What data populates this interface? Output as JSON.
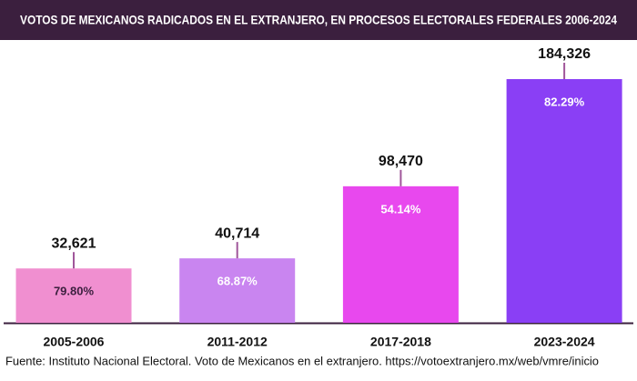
{
  "chart_data": {
    "type": "bar",
    "title": "VOTOS DE MEXICANOS RADICADOS EN EL EXTRANJERO, EN PROCESOS ELECTORALES FEDERALES 2006-2024",
    "categories": [
      "2005-2006",
      "2011-2012",
      "2017-2018",
      "2023-2024"
    ],
    "values": [
      32621,
      40714,
      98470,
      184326
    ],
    "value_labels": [
      "32,621",
      "40,714",
      "98,470",
      "184,326"
    ],
    "colors": [
      "#f08fd0",
      "#c985f0",
      "#e848ee",
      "#8a3ff5"
    ],
    "shares": {
      "values": [
        79.8,
        68.87,
        54.14,
        82.29
      ],
      "value_labels": [
        "79.80%",
        "68.87%",
        "54.14%",
        "82.29%"
      ]
    },
    "source": "Fuente: Instituto Nacional Electoral. Voto de Mexicanos en el extranjero. https://votoextranjero.mx/web/vmre/inicio"
  }
}
